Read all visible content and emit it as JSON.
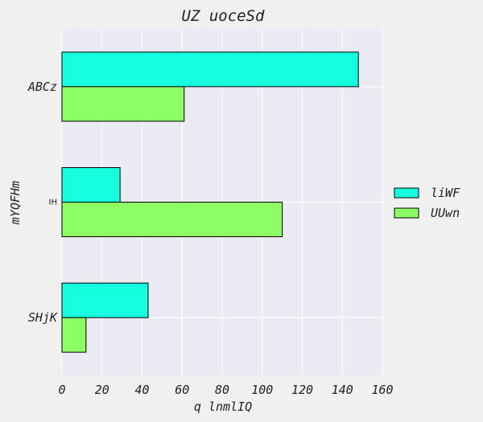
{
  "chart_data": {
    "type": "bar",
    "orientation": "horizontal",
    "title": "UZ uoceSd",
    "xlabel": "q lnmlIQ",
    "ylabel": "mYQFHm",
    "categories": [
      "ABCz",
      "IH",
      "SHjK"
    ],
    "series": [
      {
        "name": "liWF",
        "values": [
          148,
          29,
          43
        ],
        "color": "#16ffdf"
      },
      {
        "name": "UUwn",
        "values": [
          61,
          110,
          12
        ],
        "color": "#8cff67"
      }
    ],
    "xlim": [
      0,
      160
    ],
    "xticks": [
      0,
      20,
      40,
      60,
      80,
      100,
      120,
      140,
      160
    ],
    "grid": true,
    "legend_position": "right",
    "background": "#eaeaf2",
    "figure_background": "#f0f0f0"
  }
}
